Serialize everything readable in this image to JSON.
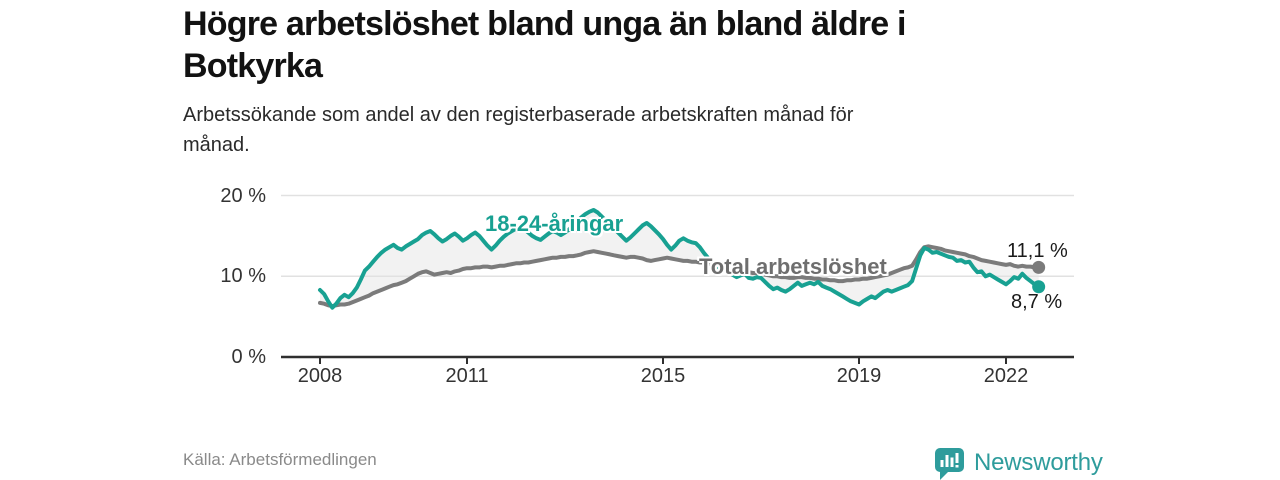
{
  "header": {
    "title": "Högre arbetslöshet bland unga än bland äldre i\nBotkyrka",
    "subtitle": "Arbetssökande som andel av den registerbaserade arbetskraften månad för\nmånad."
  },
  "footer": {
    "source": "Källa: Arbetsförmedlingen",
    "brand": "Newsworthy"
  },
  "colors": {
    "youth_teal": "#18a192",
    "total_gray": "#7b7b7b",
    "band_fill": "#f2f2f2",
    "grid": "#e1e1e1",
    "axis": "#2f2f2f",
    "brand_teal": "#2e9c9c",
    "source_gray": "#8a8a8a",
    "title_dark": "#121212"
  },
  "chart_data": {
    "type": "line",
    "title": "Högre arbetslöshet bland unga än bland äldre i Botkyrka",
    "subtitle": "Arbetssökande som andel av den registerbaserade arbetskraften månad för månad.",
    "xlabel": "",
    "ylabel": "",
    "frequency": "monthly",
    "x_start": "2008-01",
    "x_end": "2022-09",
    "ylim": [
      0,
      22
    ],
    "grid": "horizontal",
    "legend_position": "inline-labels",
    "y_ticks": [
      {
        "label": "20 %",
        "value": 20
      },
      {
        "label": "10 %",
        "value": 10
      },
      {
        "label": "0 %",
        "value": 0
      }
    ],
    "x_ticks": [
      {
        "label": "2008",
        "year": 2008
      },
      {
        "label": "2011",
        "year": 2011
      },
      {
        "label": "2015",
        "year": 2015
      },
      {
        "label": "2019",
        "year": 2019
      },
      {
        "label": "2022",
        "year": 2022
      }
    ],
    "series": [
      {
        "name": "18-24-åringar",
        "color": "#18a192",
        "end_label": "8,7 %",
        "end_value": 8.7,
        "values": [
          8.3,
          7.8,
          6.9,
          6.1,
          6.6,
          7.3,
          7.7,
          7.4,
          7.9,
          8.6,
          9.6,
          10.7,
          11.2,
          11.8,
          12.4,
          12.9,
          13.3,
          13.6,
          13.9,
          13.5,
          13.3,
          13.7,
          14.0,
          14.3,
          14.6,
          15.1,
          15.4,
          15.6,
          15.2,
          14.7,
          14.3,
          14.6,
          15.0,
          15.3,
          14.9,
          14.4,
          14.7,
          15.1,
          15.4,
          15.0,
          14.4,
          13.8,
          13.3,
          13.8,
          14.4,
          14.9,
          15.3,
          15.6,
          15.9,
          16.1,
          15.8,
          15.4,
          15.0,
          14.7,
          14.5,
          14.9,
          15.3,
          15.6,
          15.4,
          15.1,
          15.4,
          15.8,
          16.3,
          16.8,
          17.3,
          17.7,
          18.0,
          18.2,
          17.9,
          17.4,
          16.9,
          16.4,
          15.9,
          15.4,
          14.9,
          14.4,
          14.8,
          15.3,
          15.8,
          16.3,
          16.6,
          16.2,
          15.7,
          15.2,
          14.6,
          13.9,
          13.3,
          13.8,
          14.4,
          14.7,
          14.4,
          14.2,
          14.1,
          13.6,
          12.9,
          12.3,
          11.8,
          11.3,
          10.9,
          10.8,
          10.5,
          10.2,
          9.9,
          10.1,
          10.3,
          9.8,
          9.7,
          9.9,
          9.8,
          9.3,
          8.8,
          8.4,
          8.6,
          8.3,
          8.1,
          8.4,
          8.8,
          9.2,
          8.8,
          9.0,
          9.2,
          9.0,
          9.3,
          8.8,
          8.6,
          8.4,
          8.1,
          7.8,
          7.5,
          7.2,
          6.9,
          6.7,
          6.5,
          6.9,
          7.2,
          7.5,
          7.3,
          7.7,
          8.1,
          8.3,
          8.1,
          8.3,
          8.5,
          8.7,
          8.9,
          9.4,
          11.0,
          12.6,
          13.5,
          13.3,
          12.9,
          13.0,
          12.8,
          12.6,
          12.4,
          12.3,
          11.9,
          12.0,
          11.7,
          11.8,
          11.1,
          10.5,
          10.6,
          10.0,
          10.2,
          9.9,
          9.6,
          9.3,
          9.0,
          9.4,
          9.9,
          9.7,
          10.3,
          9.8,
          9.4,
          9.0,
          8.7
        ]
      },
      {
        "name": "Total arbetslöshet",
        "color": "#7b7b7b",
        "end_label": "11,1 %",
        "end_value": 11.1,
        "values": [
          6.7,
          6.6,
          6.4,
          6.3,
          6.4,
          6.5,
          6.5,
          6.6,
          6.8,
          7.0,
          7.2,
          7.4,
          7.6,
          7.9,
          8.1,
          8.3,
          8.5,
          8.7,
          8.9,
          9.0,
          9.2,
          9.4,
          9.7,
          10.0,
          10.3,
          10.5,
          10.6,
          10.4,
          10.2,
          10.3,
          10.4,
          10.5,
          10.4,
          10.6,
          10.7,
          10.9,
          11.0,
          11.0,
          11.1,
          11.1,
          11.2,
          11.2,
          11.1,
          11.2,
          11.3,
          11.3,
          11.4,
          11.5,
          11.6,
          11.6,
          11.7,
          11.7,
          11.8,
          11.9,
          12.0,
          12.1,
          12.2,
          12.3,
          12.3,
          12.4,
          12.4,
          12.5,
          12.5,
          12.6,
          12.7,
          12.9,
          13.0,
          13.1,
          13.0,
          12.9,
          12.8,
          12.7,
          12.6,
          12.5,
          12.4,
          12.3,
          12.4,
          12.4,
          12.3,
          12.2,
          12.0,
          11.9,
          12.0,
          12.1,
          12.2,
          12.3,
          12.2,
          12.1,
          12.0,
          11.9,
          11.9,
          11.8,
          11.8,
          11.7,
          11.7,
          11.6,
          11.4,
          11.2,
          11.0,
          10.9,
          10.8,
          10.8,
          10.7,
          10.6,
          10.6,
          10.5,
          10.4,
          10.4,
          10.3,
          10.2,
          10.1,
          10.0,
          10.0,
          9.9,
          9.9,
          9.8,
          9.8,
          9.9,
          9.9,
          9.8,
          9.8,
          9.7,
          9.7,
          9.6,
          9.6,
          9.5,
          9.5,
          9.4,
          9.4,
          9.5,
          9.5,
          9.6,
          9.6,
          9.7,
          9.7,
          9.8,
          9.9,
          10.0,
          10.1,
          10.2,
          10.4,
          10.6,
          10.8,
          11.0,
          11.1,
          11.3,
          12.1,
          13.0,
          13.6,
          13.7,
          13.6,
          13.5,
          13.4,
          13.2,
          13.1,
          13.0,
          12.9,
          12.8,
          12.7,
          12.5,
          12.4,
          12.2,
          12.0,
          11.9,
          11.8,
          11.7,
          11.6,
          11.5,
          11.4,
          11.5,
          11.3,
          11.2,
          11.3,
          11.2,
          11.2,
          11.1,
          11.1
        ]
      }
    ]
  }
}
